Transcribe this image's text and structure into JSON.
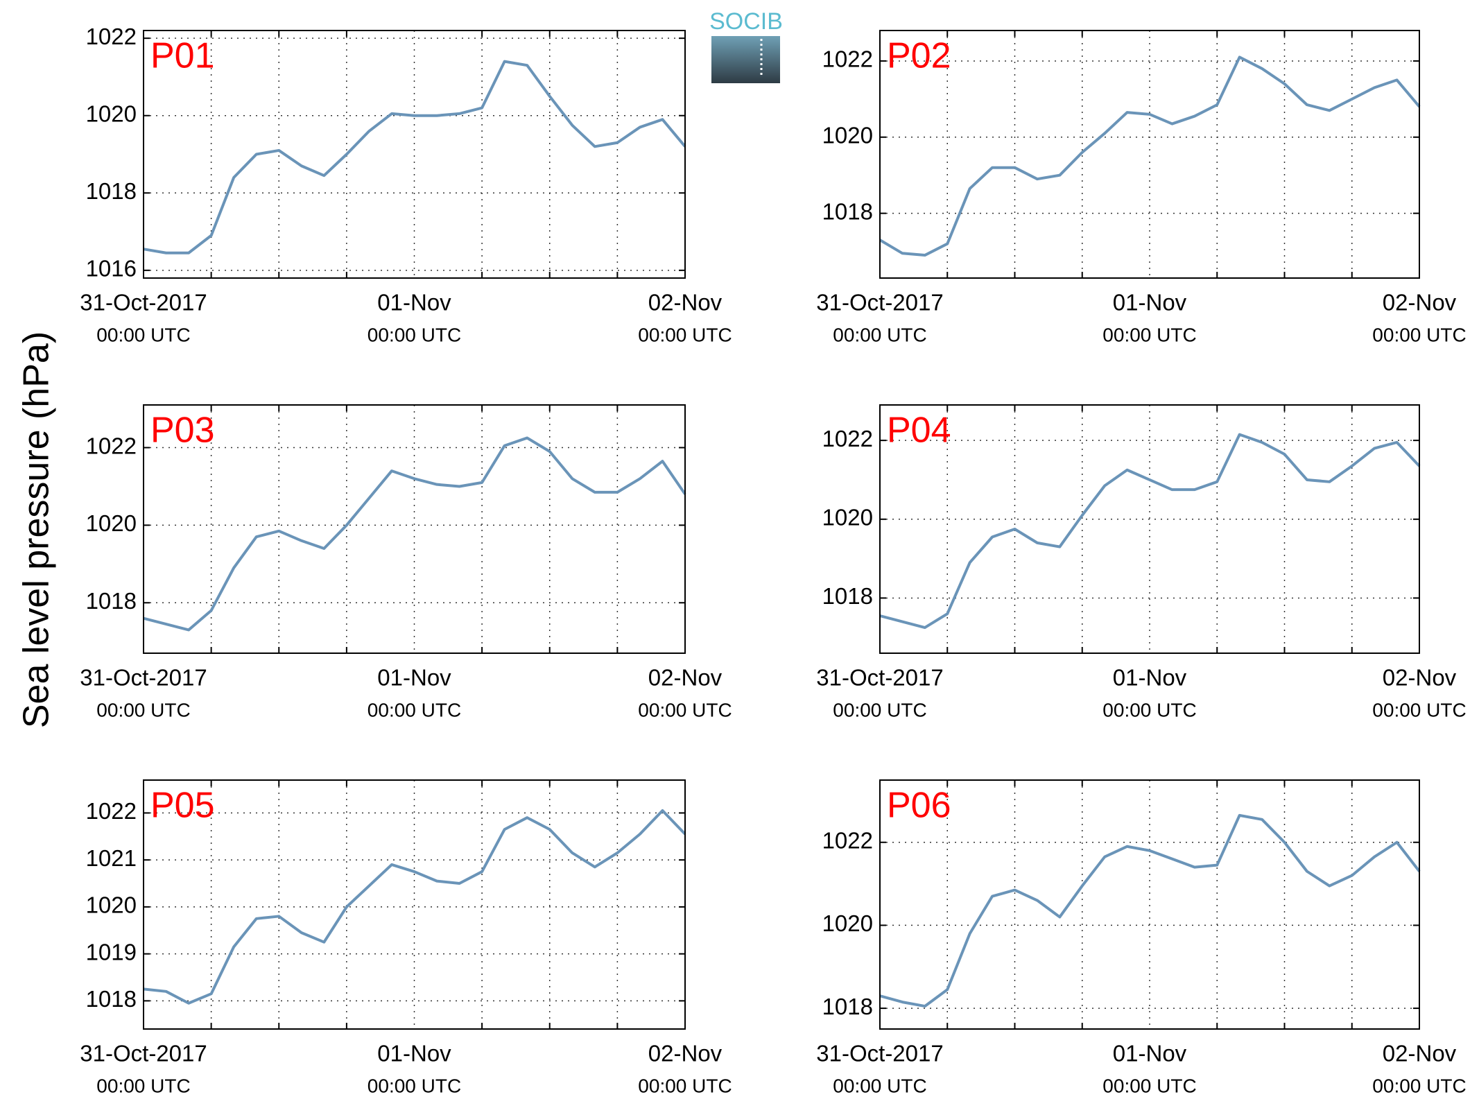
{
  "y_label": "Sea level pressure (hPa)",
  "logo": "SOCIB",
  "chart_data": [
    {
      "type": "line",
      "label": "P01",
      "x": [
        "2017-10-31T00:00",
        "2017-10-31T02:00",
        "2017-10-31T04:00",
        "2017-10-31T06:00",
        "2017-10-31T08:00",
        "2017-10-31T10:00",
        "2017-10-31T12:00",
        "2017-10-31T14:00",
        "2017-10-31T16:00",
        "2017-10-31T18:00",
        "2017-10-31T20:00",
        "2017-10-31T22:00",
        "2017-11-01T00:00",
        "2017-11-01T02:00",
        "2017-11-01T04:00",
        "2017-11-01T06:00",
        "2017-11-01T08:00",
        "2017-11-01T10:00",
        "2017-11-01T12:00",
        "2017-11-01T14:00",
        "2017-11-01T16:00",
        "2017-11-01T18:00",
        "2017-11-01T20:00",
        "2017-11-01T22:00",
        "2017-11-02T00:00"
      ],
      "series": [
        {
          "color": "#6a94b8",
          "values": [
            1016.55,
            1016.45,
            1016.45,
            1016.9,
            1018.4,
            1019.0,
            1019.1,
            1018.7,
            1018.45,
            1019.0,
            1019.6,
            1020.05,
            1020.0,
            1020.0,
            1020.05,
            1020.2,
            1021.4,
            1021.3,
            1020.5,
            1019.75,
            1019.2,
            1019.3,
            1019.7,
            1019.9,
            1019.2
          ]
        }
      ],
      "xlim": [
        "2017-10-31T00:00",
        "2017-11-02T00:00"
      ],
      "xticks": [
        {
          "value": "2017-10-31T00:00",
          "label": "31-Oct-2017",
          "time": "00:00 UTC"
        },
        {
          "value": "2017-11-01T00:00",
          "label": "01-Nov",
          "time": "00:00 UTC"
        },
        {
          "value": "2017-11-02T00:00",
          "label": "02-Nov",
          "time": "00:00 UTC"
        }
      ],
      "xgrid": [
        "2017-10-31T06:00",
        "2017-10-31T12:00",
        "2017-10-31T18:00",
        "2017-11-01T06:00",
        "2017-11-01T12:00",
        "2017-11-01T18:00"
      ],
      "ylim": [
        1015.8,
        1022.2
      ],
      "yticks": [
        1016,
        1018,
        1020,
        1022
      ],
      "grid": true
    },
    {
      "type": "line",
      "label": "P02",
      "x": [
        "2017-10-31T00:00",
        "2017-10-31T02:00",
        "2017-10-31T04:00",
        "2017-10-31T06:00",
        "2017-10-31T08:00",
        "2017-10-31T10:00",
        "2017-10-31T12:00",
        "2017-10-31T14:00",
        "2017-10-31T16:00",
        "2017-10-31T18:00",
        "2017-10-31T20:00",
        "2017-10-31T22:00",
        "2017-11-01T00:00",
        "2017-11-01T02:00",
        "2017-11-01T04:00",
        "2017-11-01T06:00",
        "2017-11-01T08:00",
        "2017-11-01T10:00",
        "2017-11-01T12:00",
        "2017-11-01T14:00",
        "2017-11-01T16:00",
        "2017-11-01T18:00",
        "2017-11-01T20:00",
        "2017-11-01T22:00",
        "2017-11-02T00:00"
      ],
      "series": [
        {
          "color": "#6a94b8",
          "values": [
            1017.3,
            1016.95,
            1016.9,
            1017.2,
            1018.65,
            1019.2,
            1019.2,
            1018.9,
            1019.0,
            1019.6,
            1020.1,
            1020.65,
            1020.6,
            1020.35,
            1020.55,
            1020.85,
            1022.1,
            1021.8,
            1021.4,
            1020.85,
            1020.7,
            1021.0,
            1021.3,
            1021.5,
            1020.8
          ]
        }
      ],
      "xlim": [
        "2017-10-31T00:00",
        "2017-11-02T00:00"
      ],
      "xticks": [
        {
          "value": "2017-10-31T00:00",
          "label": "31-Oct-2017",
          "time": "00:00 UTC"
        },
        {
          "value": "2017-11-01T00:00",
          "label": "01-Nov",
          "time": "00:00 UTC"
        },
        {
          "value": "2017-11-02T00:00",
          "label": "02-Nov",
          "time": "00:00 UTC"
        }
      ],
      "xgrid": [
        "2017-10-31T06:00",
        "2017-10-31T12:00",
        "2017-10-31T18:00",
        "2017-11-01T06:00",
        "2017-11-01T12:00",
        "2017-11-01T18:00"
      ],
      "ylim": [
        1016.3,
        1022.8
      ],
      "yticks": [
        1018,
        1020,
        1022
      ],
      "grid": true
    },
    {
      "type": "line",
      "label": "P03",
      "x": [
        "2017-10-31T00:00",
        "2017-10-31T02:00",
        "2017-10-31T04:00",
        "2017-10-31T06:00",
        "2017-10-31T08:00",
        "2017-10-31T10:00",
        "2017-10-31T12:00",
        "2017-10-31T14:00",
        "2017-10-31T16:00",
        "2017-10-31T18:00",
        "2017-10-31T20:00",
        "2017-10-31T22:00",
        "2017-11-01T00:00",
        "2017-11-01T02:00",
        "2017-11-01T04:00",
        "2017-11-01T06:00",
        "2017-11-01T08:00",
        "2017-11-01T10:00",
        "2017-11-01T12:00",
        "2017-11-01T14:00",
        "2017-11-01T16:00",
        "2017-11-01T18:00",
        "2017-11-01T20:00",
        "2017-11-01T22:00",
        "2017-11-02T00:00"
      ],
      "series": [
        {
          "color": "#6a94b8",
          "values": [
            1017.6,
            1017.45,
            1017.3,
            1017.8,
            1018.9,
            1019.7,
            1019.85,
            1019.6,
            1019.4,
            1020.0,
            1020.7,
            1021.4,
            1021.2,
            1021.05,
            1021.0,
            1021.1,
            1022.05,
            1022.25,
            1021.9,
            1021.2,
            1020.85,
            1020.85,
            1021.2,
            1021.65,
            1020.8
          ]
        }
      ],
      "xlim": [
        "2017-10-31T00:00",
        "2017-11-02T00:00"
      ],
      "xticks": [
        {
          "value": "2017-10-31T00:00",
          "label": "31-Oct-2017",
          "time": "00:00 UTC"
        },
        {
          "value": "2017-11-01T00:00",
          "label": "01-Nov",
          "time": "00:00 UTC"
        },
        {
          "value": "2017-11-02T00:00",
          "label": "02-Nov",
          "time": "00:00 UTC"
        }
      ],
      "xgrid": [
        "2017-10-31T06:00",
        "2017-10-31T12:00",
        "2017-10-31T18:00",
        "2017-11-01T06:00",
        "2017-11-01T12:00",
        "2017-11-01T18:00"
      ],
      "ylim": [
        1016.7,
        1023.1
      ],
      "yticks": [
        1018,
        1020,
        1022
      ],
      "grid": true
    },
    {
      "type": "line",
      "label": "P04",
      "x": [
        "2017-10-31T00:00",
        "2017-10-31T02:00",
        "2017-10-31T04:00",
        "2017-10-31T06:00",
        "2017-10-31T08:00",
        "2017-10-31T10:00",
        "2017-10-31T12:00",
        "2017-10-31T14:00",
        "2017-10-31T16:00",
        "2017-10-31T18:00",
        "2017-10-31T20:00",
        "2017-10-31T22:00",
        "2017-11-01T00:00",
        "2017-11-01T02:00",
        "2017-11-01T04:00",
        "2017-11-01T06:00",
        "2017-11-01T08:00",
        "2017-11-01T10:00",
        "2017-11-01T12:00",
        "2017-11-01T14:00",
        "2017-11-01T16:00",
        "2017-11-01T18:00",
        "2017-11-01T20:00",
        "2017-11-01T22:00",
        "2017-11-02T00:00"
      ],
      "series": [
        {
          "color": "#6a94b8",
          "values": [
            1017.55,
            1017.4,
            1017.25,
            1017.6,
            1018.9,
            1019.55,
            1019.75,
            1019.4,
            1019.3,
            1020.1,
            1020.85,
            1021.25,
            1021.0,
            1020.75,
            1020.75,
            1020.95,
            1022.15,
            1021.95,
            1021.65,
            1021.0,
            1020.95,
            1021.35,
            1021.8,
            1021.95,
            1021.35
          ]
        }
      ],
      "xlim": [
        "2017-10-31T00:00",
        "2017-11-02T00:00"
      ],
      "xticks": [
        {
          "value": "2017-10-31T00:00",
          "label": "31-Oct-2017",
          "time": "00:00 UTC"
        },
        {
          "value": "2017-11-01T00:00",
          "label": "01-Nov",
          "time": "00:00 UTC"
        },
        {
          "value": "2017-11-02T00:00",
          "label": "02-Nov",
          "time": "00:00 UTC"
        }
      ],
      "xgrid": [
        "2017-10-31T06:00",
        "2017-10-31T12:00",
        "2017-10-31T18:00",
        "2017-11-01T06:00",
        "2017-11-01T12:00",
        "2017-11-01T18:00"
      ],
      "ylim": [
        1016.6,
        1022.9
      ],
      "yticks": [
        1018,
        1020,
        1022
      ],
      "grid": true
    },
    {
      "type": "line",
      "label": "P05",
      "x": [
        "2017-10-31T00:00",
        "2017-10-31T02:00",
        "2017-10-31T04:00",
        "2017-10-31T06:00",
        "2017-10-31T08:00",
        "2017-10-31T10:00",
        "2017-10-31T12:00",
        "2017-10-31T14:00",
        "2017-10-31T16:00",
        "2017-10-31T18:00",
        "2017-10-31T20:00",
        "2017-10-31T22:00",
        "2017-11-01T00:00",
        "2017-11-01T02:00",
        "2017-11-01T04:00",
        "2017-11-01T06:00",
        "2017-11-01T08:00",
        "2017-11-01T10:00",
        "2017-11-01T12:00",
        "2017-11-01T14:00",
        "2017-11-01T16:00",
        "2017-11-01T18:00",
        "2017-11-01T20:00",
        "2017-11-01T22:00",
        "2017-11-02T00:00"
      ],
      "series": [
        {
          "color": "#6a94b8",
          "values": [
            1018.25,
            1018.2,
            1017.95,
            1018.15,
            1019.15,
            1019.75,
            1019.8,
            1019.45,
            1019.25,
            1020.0,
            1020.45,
            1020.9,
            1020.75,
            1020.55,
            1020.5,
            1020.75,
            1021.65,
            1021.9,
            1021.65,
            1021.15,
            1020.85,
            1021.15,
            1021.55,
            1022.05,
            1021.55
          ]
        }
      ],
      "xlim": [
        "2017-10-31T00:00",
        "2017-11-02T00:00"
      ],
      "xticks": [
        {
          "value": "2017-10-31T00:00",
          "label": "31-Oct-2017",
          "time": "00:00 UTC"
        },
        {
          "value": "2017-11-01T00:00",
          "label": "01-Nov",
          "time": "00:00 UTC"
        },
        {
          "value": "2017-11-02T00:00",
          "label": "02-Nov",
          "time": "00:00 UTC"
        }
      ],
      "xgrid": [
        "2017-10-31T06:00",
        "2017-10-31T12:00",
        "2017-10-31T18:00",
        "2017-11-01T06:00",
        "2017-11-01T12:00",
        "2017-11-01T18:00"
      ],
      "ylim": [
        1017.4,
        1022.7
      ],
      "yticks": [
        1018,
        1019,
        1020,
        1021,
        1022
      ],
      "grid": true
    },
    {
      "type": "line",
      "label": "P06",
      "x": [
        "2017-10-31T00:00",
        "2017-10-31T02:00",
        "2017-10-31T04:00",
        "2017-10-31T06:00",
        "2017-10-31T08:00",
        "2017-10-31T10:00",
        "2017-10-31T12:00",
        "2017-10-31T14:00",
        "2017-10-31T16:00",
        "2017-10-31T18:00",
        "2017-10-31T20:00",
        "2017-10-31T22:00",
        "2017-11-01T00:00",
        "2017-11-01T02:00",
        "2017-11-01T04:00",
        "2017-11-01T06:00",
        "2017-11-01T08:00",
        "2017-11-01T10:00",
        "2017-11-01T12:00",
        "2017-11-01T14:00",
        "2017-11-01T16:00",
        "2017-11-01T18:00",
        "2017-11-01T20:00",
        "2017-11-01T22:00",
        "2017-11-02T00:00"
      ],
      "series": [
        {
          "color": "#6a94b8",
          "values": [
            1018.3,
            1018.15,
            1018.05,
            1018.45,
            1019.8,
            1020.7,
            1020.85,
            1020.6,
            1020.2,
            1020.95,
            1021.65,
            1021.9,
            1021.8,
            1021.6,
            1021.4,
            1021.45,
            1022.65,
            1022.55,
            1022.0,
            1021.3,
            1020.95,
            1021.2,
            1021.65,
            1022.0,
            1021.3
          ]
        }
      ],
      "xlim": [
        "2017-10-31T00:00",
        "2017-11-02T00:00"
      ],
      "xticks": [
        {
          "value": "2017-10-31T00:00",
          "label": "31-Oct-2017",
          "time": "00:00 UTC"
        },
        {
          "value": "2017-11-01T00:00",
          "label": "01-Nov",
          "time": "00:00 UTC"
        },
        {
          "value": "2017-11-02T00:00",
          "label": "02-Nov",
          "time": "00:00 UTC"
        }
      ],
      "xgrid": [
        "2017-10-31T06:00",
        "2017-10-31T12:00",
        "2017-10-31T18:00",
        "2017-11-01T06:00",
        "2017-11-01T12:00",
        "2017-11-01T18:00"
      ],
      "ylim": [
        1017.5,
        1023.5
      ],
      "yticks": [
        1018,
        1020,
        1022
      ],
      "grid": true
    }
  ]
}
